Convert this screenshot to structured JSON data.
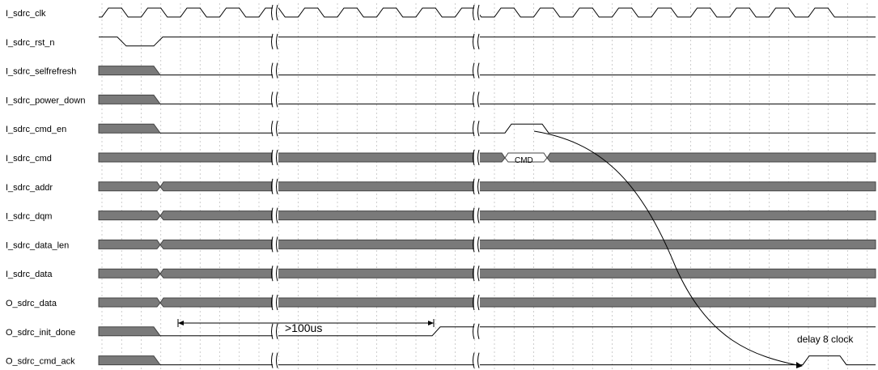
{
  "signals": [
    {
      "name": "I_sdrc_clk",
      "kind": "clock"
    },
    {
      "name": "I_sdrc_rst_n",
      "kind": "rst"
    },
    {
      "name": "I_sdrc_selfrefresh",
      "kind": "init-low"
    },
    {
      "name": "I_sdrc_power_down",
      "kind": "init-low"
    },
    {
      "name": "I_sdrc_cmd_en",
      "kind": "pulse"
    },
    {
      "name": "I_sdrc_cmd",
      "kind": "cmd-bus"
    },
    {
      "name": "I_sdrc_addr",
      "kind": "bus"
    },
    {
      "name": "I_sdrc_dqm",
      "kind": "bus"
    },
    {
      "name": "I_sdrc_data_len",
      "kind": "bus"
    },
    {
      "name": "I_sdrc_data",
      "kind": "bus"
    },
    {
      "name": "O_sdrc_data",
      "kind": "bus"
    },
    {
      "name": "O_sdrc_init_done",
      "kind": "init-done"
    },
    {
      "name": "O_sdrc_cmd_ack",
      "kind": "ack"
    }
  ],
  "annotations": {
    "cmd_value": "CMD",
    "init_wait": ">100us",
    "ack_delay": "delay 8 clock"
  },
  "colors": {
    "bus_fill": "#7a7a7a",
    "grid": "#b8b8b8",
    "line": "#000000"
  }
}
